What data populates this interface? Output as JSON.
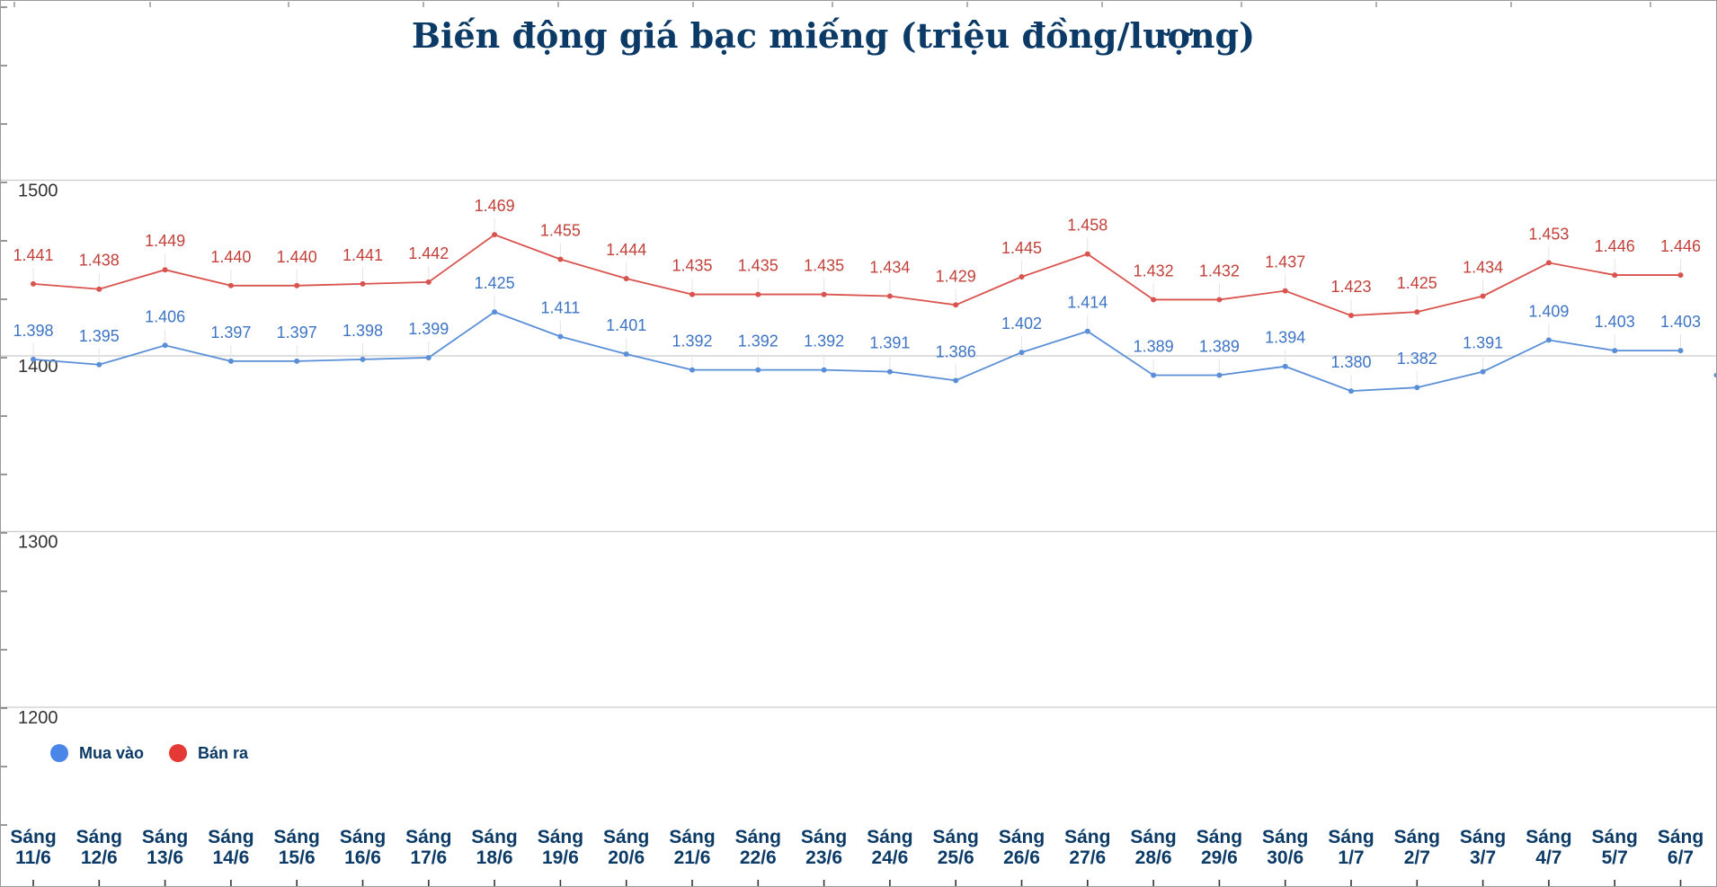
{
  "chart_data": {
    "type": "line",
    "title": "Biến động giá bạc miếng (triệu đồng/lượng)",
    "xlabel": "",
    "ylabel": "",
    "ylim": [
      1100,
      1600
    ],
    "yticks": [
      1200,
      1300,
      1400,
      1500
    ],
    "grid": true,
    "legend_position": "bottom-left",
    "categories": [
      [
        "Sáng",
        "11/6"
      ],
      [
        "Sáng",
        "12/6"
      ],
      [
        "Sáng",
        "13/6"
      ],
      [
        "Sáng",
        "14/6"
      ],
      [
        "Sáng",
        "15/6"
      ],
      [
        "Sáng",
        "16/6"
      ],
      [
        "Sáng",
        "17/6"
      ],
      [
        "Sáng",
        "18/6"
      ],
      [
        "Sáng",
        "19/6"
      ],
      [
        "Sáng",
        "20/6"
      ],
      [
        "Sáng",
        "21/6"
      ],
      [
        "Sáng",
        "22/6"
      ],
      [
        "Sáng",
        "23/6"
      ],
      [
        "Sáng",
        "24/6"
      ],
      [
        "Sáng",
        "25/6"
      ],
      [
        "Sáng",
        "26/6"
      ],
      [
        "Sáng",
        "27/6"
      ],
      [
        "Sáng",
        "28/6"
      ],
      [
        "Sáng",
        "29/6"
      ],
      [
        "Sáng",
        "30/6"
      ],
      [
        "Sáng",
        "1/7"
      ],
      [
        "Sáng",
        "2/7"
      ],
      [
        "Sáng",
        "3/7"
      ],
      [
        "Sáng",
        "4/7"
      ],
      [
        "Sáng",
        "5/7"
      ],
      [
        "Sáng",
        "6/7"
      ]
    ],
    "series": [
      {
        "name": "Mua vào",
        "color": "#4a86e8",
        "values": [
          1398,
          1395,
          1406,
          1397,
          1397,
          1398,
          1399,
          1425,
          1411,
          1401,
          1392,
          1392,
          1392,
          1391,
          1386,
          1402,
          1414,
          1389,
          1389,
          1394,
          1380,
          1382,
          1391,
          1409,
          1403,
          1403
        ],
        "labels": [
          "1.398",
          "1.395",
          "1.406",
          "1.397",
          "1.397",
          "1.398",
          "1.399",
          "1.425",
          "1.411",
          "1.401",
          "1.392",
          "1.392",
          "1.392",
          "1.391",
          "1.386",
          "1.402",
          "1.414",
          "1.389",
          "1.389",
          "1.394",
          "1.380",
          "1.382",
          "1.391",
          "1.409",
          "1.403",
          "1.403"
        ]
      },
      {
        "name": "Bán ra",
        "color": "#e53935",
        "values": [
          1441,
          1438,
          1449,
          1440,
          1440,
          1441,
          1442,
          1469,
          1455,
          1444,
          1435,
          1435,
          1435,
          1434,
          1429,
          1445,
          1458,
          1432,
          1432,
          1437,
          1423,
          1425,
          1434,
          1453,
          1446,
          1446
        ],
        "labels": [
          "1.441",
          "1.438",
          "1.449",
          "1.440",
          "1.440",
          "1.441",
          "1.442",
          "1.469",
          "1.455",
          "1.444",
          "1.435",
          "1.435",
          "1.435",
          "1.434",
          "1.429",
          "1.445",
          "1.458",
          "1.432",
          "1.432",
          "1.437",
          "1.423",
          "1.425",
          "1.434",
          "1.453",
          "1.446",
          "1.446"
        ]
      }
    ]
  },
  "colors": {
    "title": "#0b3a66",
    "xtick": "#0b3a66",
    "buy_label": "#3d74c4",
    "sell_label": "#c2413a",
    "line_buy": "#5a8fd8",
    "line_sell": "#d9534f",
    "grid": "#cccccc"
  }
}
